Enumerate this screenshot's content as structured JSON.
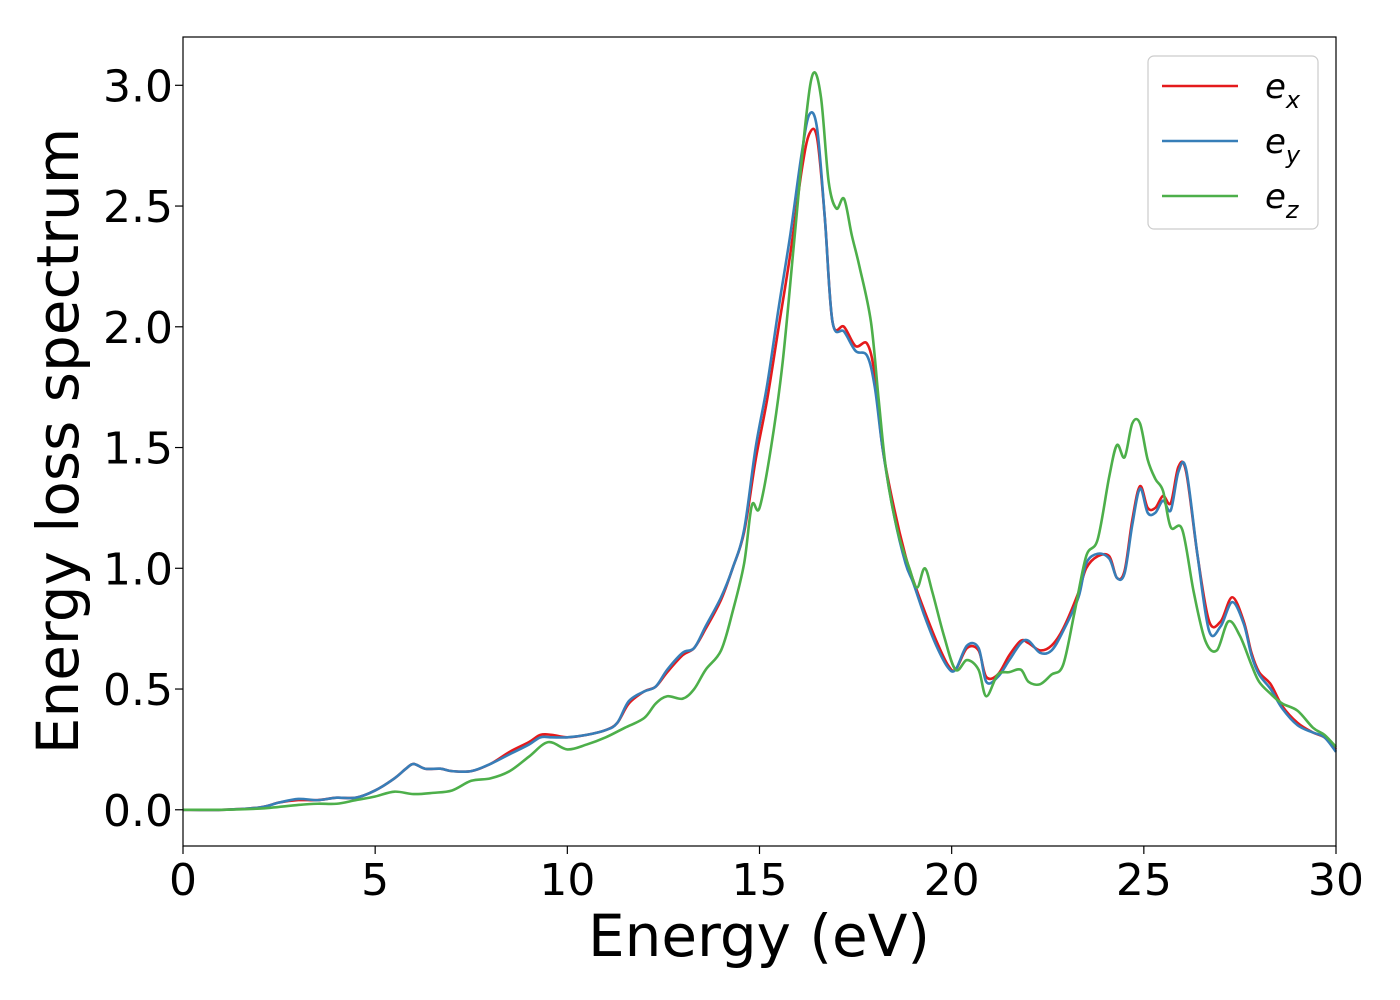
{
  "chart_data": {
    "type": "line",
    "title": "",
    "xlabel": "Energy (eV)",
    "ylabel": "Energy loss spectrum",
    "xlim": [
      0,
      30
    ],
    "ylim": [
      -0.15,
      3.2
    ],
    "xticks": [
      0,
      5,
      10,
      15,
      20,
      25,
      30
    ],
    "xtick_labels": [
      "0",
      "5",
      "10",
      "15",
      "20",
      "25",
      "30"
    ],
    "yticks": [
      0.0,
      0.5,
      1.0,
      1.5,
      2.0,
      2.5,
      3.0
    ],
    "ytick_labels": [
      "0.0",
      "0.5",
      "1.0",
      "1.5",
      "2.0",
      "2.5",
      "3.0"
    ],
    "grid": false,
    "legend_position": "top-right",
    "series": [
      {
        "name": "e_x",
        "legend_main": "e",
        "legend_sub": "x",
        "color": "#e41a1c",
        "points": [
          [
            0,
            0
          ],
          [
            1,
            0
          ],
          [
            2,
            0.01
          ],
          [
            2.5,
            0.03
          ],
          [
            3,
            0.04
          ],
          [
            3.5,
            0.04
          ],
          [
            4,
            0.05
          ],
          [
            4.5,
            0.05
          ],
          [
            5,
            0.08
          ],
          [
            5.5,
            0.13
          ],
          [
            5.8,
            0.17
          ],
          [
            6,
            0.19
          ],
          [
            6.3,
            0.17
          ],
          [
            6.7,
            0.17
          ],
          [
            7,
            0.16
          ],
          [
            7.5,
            0.16
          ],
          [
            8,
            0.19
          ],
          [
            8.5,
            0.24
          ],
          [
            9,
            0.28
          ],
          [
            9.3,
            0.31
          ],
          [
            9.6,
            0.31
          ],
          [
            10,
            0.3
          ],
          [
            10.5,
            0.31
          ],
          [
            11,
            0.33
          ],
          [
            11.3,
            0.36
          ],
          [
            11.6,
            0.44
          ],
          [
            12,
            0.49
          ],
          [
            12.3,
            0.51
          ],
          [
            12.6,
            0.57
          ],
          [
            13,
            0.64
          ],
          [
            13.3,
            0.67
          ],
          [
            13.6,
            0.75
          ],
          [
            14,
            0.87
          ],
          [
            14.3,
            1.0
          ],
          [
            14.6,
            1.15
          ],
          [
            14.9,
            1.45
          ],
          [
            15.2,
            1.7
          ],
          [
            15.5,
            2.0
          ],
          [
            15.8,
            2.3
          ],
          [
            16.1,
            2.65
          ],
          [
            16.3,
            2.8
          ],
          [
            16.5,
            2.78
          ],
          [
            16.7,
            2.45
          ],
          [
            16.9,
            2.02
          ],
          [
            17.2,
            2.0
          ],
          [
            17.5,
            1.92
          ],
          [
            17.8,
            1.93
          ],
          [
            18.0,
            1.8
          ],
          [
            18.2,
            1.5
          ],
          [
            18.5,
            1.25
          ],
          [
            18.8,
            1.05
          ],
          [
            19.0,
            0.95
          ],
          [
            19.3,
            0.82
          ],
          [
            19.6,
            0.7
          ],
          [
            19.9,
            0.6
          ],
          [
            20.1,
            0.58
          ],
          [
            20.4,
            0.67
          ],
          [
            20.7,
            0.66
          ],
          [
            20.9,
            0.55
          ],
          [
            21.2,
            0.56
          ],
          [
            21.5,
            0.64
          ],
          [
            21.8,
            0.7
          ],
          [
            22.0,
            0.69
          ],
          [
            22.3,
            0.66
          ],
          [
            22.6,
            0.68
          ],
          [
            22.9,
            0.75
          ],
          [
            23.3,
            0.9
          ],
          [
            23.5,
            1.0
          ],
          [
            23.8,
            1.05
          ],
          [
            24.1,
            1.05
          ],
          [
            24.3,
            0.96
          ],
          [
            24.5,
            0.99
          ],
          [
            24.7,
            1.2
          ],
          [
            24.9,
            1.34
          ],
          [
            25.1,
            1.25
          ],
          [
            25.3,
            1.25
          ],
          [
            25.5,
            1.3
          ],
          [
            25.7,
            1.27
          ],
          [
            25.9,
            1.42
          ],
          [
            26.1,
            1.4
          ],
          [
            26.4,
            1.05
          ],
          [
            26.7,
            0.78
          ],
          [
            27.0,
            0.78
          ],
          [
            27.3,
            0.88
          ],
          [
            27.6,
            0.78
          ],
          [
            27.8,
            0.65
          ],
          [
            28.0,
            0.57
          ],
          [
            28.3,
            0.52
          ],
          [
            28.6,
            0.43
          ],
          [
            29.0,
            0.36
          ],
          [
            29.4,
            0.32
          ],
          [
            29.7,
            0.3
          ],
          [
            30,
            0.25
          ]
        ]
      },
      {
        "name": "e_y",
        "legend_main": "e",
        "legend_sub": "y",
        "color": "#377eb8",
        "points": [
          [
            0,
            0
          ],
          [
            1,
            0
          ],
          [
            2,
            0.01
          ],
          [
            2.5,
            0.03
          ],
          [
            3,
            0.045
          ],
          [
            3.5,
            0.04
          ],
          [
            4,
            0.05
          ],
          [
            4.5,
            0.05
          ],
          [
            5,
            0.08
          ],
          [
            5.5,
            0.13
          ],
          [
            5.8,
            0.17
          ],
          [
            6,
            0.19
          ],
          [
            6.3,
            0.17
          ],
          [
            6.7,
            0.17
          ],
          [
            7,
            0.16
          ],
          [
            7.5,
            0.16
          ],
          [
            8,
            0.19
          ],
          [
            8.5,
            0.23
          ],
          [
            9,
            0.27
          ],
          [
            9.3,
            0.3
          ],
          [
            9.6,
            0.3
          ],
          [
            10,
            0.3
          ],
          [
            10.5,
            0.31
          ],
          [
            11,
            0.33
          ],
          [
            11.3,
            0.36
          ],
          [
            11.6,
            0.45
          ],
          [
            12,
            0.49
          ],
          [
            12.3,
            0.51
          ],
          [
            12.6,
            0.58
          ],
          [
            13,
            0.65
          ],
          [
            13.3,
            0.67
          ],
          [
            13.6,
            0.76
          ],
          [
            14,
            0.88
          ],
          [
            14.3,
            1.0
          ],
          [
            14.6,
            1.16
          ],
          [
            14.9,
            1.5
          ],
          [
            15.2,
            1.76
          ],
          [
            15.5,
            2.08
          ],
          [
            15.8,
            2.38
          ],
          [
            16.1,
            2.72
          ],
          [
            16.3,
            2.88
          ],
          [
            16.5,
            2.82
          ],
          [
            16.7,
            2.45
          ],
          [
            16.9,
            2.02
          ],
          [
            17.2,
            1.98
          ],
          [
            17.5,
            1.9
          ],
          [
            17.8,
            1.88
          ],
          [
            18.0,
            1.75
          ],
          [
            18.2,
            1.5
          ],
          [
            18.5,
            1.22
          ],
          [
            18.8,
            1.02
          ],
          [
            19.0,
            0.94
          ],
          [
            19.3,
            0.8
          ],
          [
            19.6,
            0.68
          ],
          [
            19.9,
            0.59
          ],
          [
            20.1,
            0.58
          ],
          [
            20.4,
            0.68
          ],
          [
            20.7,
            0.67
          ],
          [
            20.9,
            0.53
          ],
          [
            21.2,
            0.55
          ],
          [
            21.5,
            0.62
          ],
          [
            21.8,
            0.69
          ],
          [
            22.0,
            0.7
          ],
          [
            22.3,
            0.65
          ],
          [
            22.6,
            0.66
          ],
          [
            22.9,
            0.74
          ],
          [
            23.3,
            0.88
          ],
          [
            23.5,
            1.02
          ],
          [
            23.8,
            1.06
          ],
          [
            24.1,
            1.04
          ],
          [
            24.3,
            0.96
          ],
          [
            24.5,
            0.98
          ],
          [
            24.7,
            1.18
          ],
          [
            24.9,
            1.33
          ],
          [
            25.1,
            1.23
          ],
          [
            25.3,
            1.23
          ],
          [
            25.5,
            1.28
          ],
          [
            25.7,
            1.24
          ],
          [
            25.9,
            1.4
          ],
          [
            26.1,
            1.41
          ],
          [
            26.4,
            1.05
          ],
          [
            26.7,
            0.74
          ],
          [
            27.0,
            0.76
          ],
          [
            27.3,
            0.86
          ],
          [
            27.6,
            0.77
          ],
          [
            27.8,
            0.64
          ],
          [
            28.0,
            0.56
          ],
          [
            28.3,
            0.5
          ],
          [
            28.6,
            0.42
          ],
          [
            29.0,
            0.35
          ],
          [
            29.4,
            0.32
          ],
          [
            29.7,
            0.3
          ],
          [
            30,
            0.24
          ]
        ]
      },
      {
        "name": "e_z",
        "legend_main": "e",
        "legend_sub": "z",
        "color": "#4daf4a",
        "points": [
          [
            0,
            0
          ],
          [
            1,
            0
          ],
          [
            2,
            0.005
          ],
          [
            3,
            0.02
          ],
          [
            3.5,
            0.025
          ],
          [
            4,
            0.025
          ],
          [
            4.5,
            0.04
          ],
          [
            5,
            0.055
          ],
          [
            5.5,
            0.075
          ],
          [
            6,
            0.065
          ],
          [
            6.5,
            0.07
          ],
          [
            7,
            0.08
          ],
          [
            7.5,
            0.12
          ],
          [
            8,
            0.13
          ],
          [
            8.5,
            0.16
          ],
          [
            9,
            0.22
          ],
          [
            9.5,
            0.28
          ],
          [
            10,
            0.25
          ],
          [
            10.5,
            0.27
          ],
          [
            11,
            0.3
          ],
          [
            11.5,
            0.34
          ],
          [
            12,
            0.38
          ],
          [
            12.3,
            0.44
          ],
          [
            12.6,
            0.47
          ],
          [
            13,
            0.46
          ],
          [
            13.3,
            0.5
          ],
          [
            13.6,
            0.58
          ],
          [
            14,
            0.66
          ],
          [
            14.3,
            0.82
          ],
          [
            14.6,
            1.02
          ],
          [
            14.8,
            1.26
          ],
          [
            15.0,
            1.25
          ],
          [
            15.3,
            1.5
          ],
          [
            15.6,
            1.85
          ],
          [
            15.9,
            2.35
          ],
          [
            16.2,
            2.85
          ],
          [
            16.4,
            3.05
          ],
          [
            16.6,
            2.95
          ],
          [
            16.8,
            2.6
          ],
          [
            17.0,
            2.49
          ],
          [
            17.2,
            2.53
          ],
          [
            17.4,
            2.38
          ],
          [
            17.6,
            2.25
          ],
          [
            17.9,
            2.02
          ],
          [
            18.1,
            1.7
          ],
          [
            18.3,
            1.4
          ],
          [
            18.6,
            1.15
          ],
          [
            18.9,
            1.0
          ],
          [
            19.1,
            0.92
          ],
          [
            19.3,
            1.0
          ],
          [
            19.5,
            0.9
          ],
          [
            19.8,
            0.72
          ],
          [
            20.1,
            0.58
          ],
          [
            20.4,
            0.62
          ],
          [
            20.7,
            0.58
          ],
          [
            20.9,
            0.47
          ],
          [
            21.2,
            0.56
          ],
          [
            21.5,
            0.57
          ],
          [
            21.8,
            0.58
          ],
          [
            22.0,
            0.53
          ],
          [
            22.3,
            0.52
          ],
          [
            22.6,
            0.56
          ],
          [
            22.9,
            0.6
          ],
          [
            23.2,
            0.82
          ],
          [
            23.5,
            1.05
          ],
          [
            23.8,
            1.12
          ],
          [
            24.1,
            1.38
          ],
          [
            24.3,
            1.51
          ],
          [
            24.5,
            1.46
          ],
          [
            24.7,
            1.6
          ],
          [
            24.9,
            1.6
          ],
          [
            25.1,
            1.45
          ],
          [
            25.3,
            1.37
          ],
          [
            25.5,
            1.32
          ],
          [
            25.7,
            1.17
          ],
          [
            26.0,
            1.16
          ],
          [
            26.3,
            0.9
          ],
          [
            26.6,
            0.7
          ],
          [
            26.9,
            0.66
          ],
          [
            27.2,
            0.78
          ],
          [
            27.5,
            0.72
          ],
          [
            27.8,
            0.6
          ],
          [
            28.0,
            0.53
          ],
          [
            28.3,
            0.48
          ],
          [
            28.6,
            0.44
          ],
          [
            29.0,
            0.41
          ],
          [
            29.4,
            0.34
          ],
          [
            29.7,
            0.31
          ],
          [
            30,
            0.26
          ]
        ]
      }
    ]
  }
}
